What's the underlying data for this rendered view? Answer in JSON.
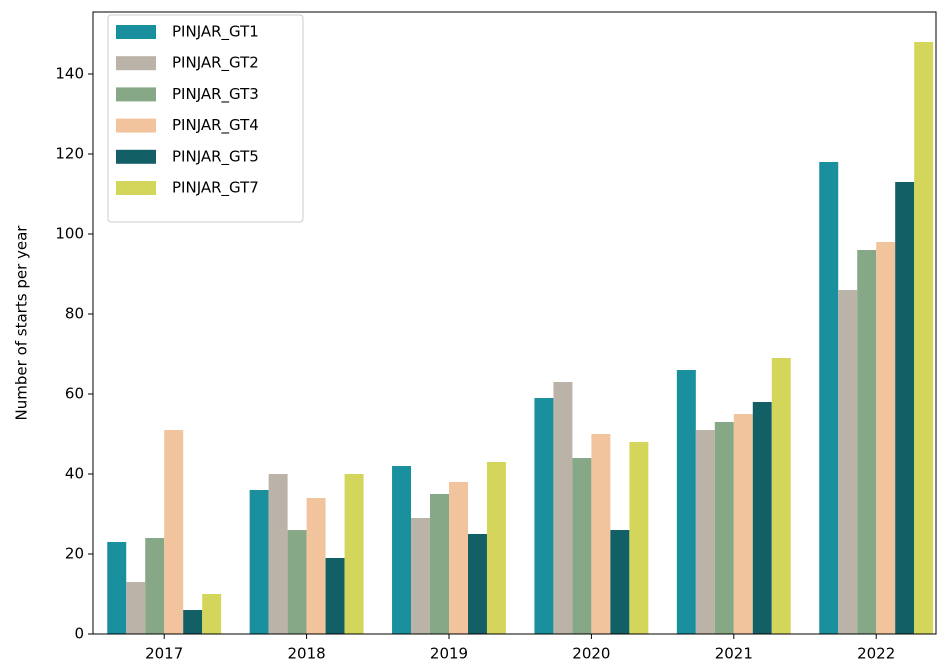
{
  "chart_data": {
    "type": "bar",
    "ylabel": "Number of starts per year",
    "categories": [
      "2017",
      "2018",
      "2019",
      "2020",
      "2021",
      "2022"
    ],
    "series": [
      {
        "name": "PINJAR_GT1",
        "color": "#1a8f9e",
        "values": [
          23,
          36,
          42,
          59,
          66,
          118
        ]
      },
      {
        "name": "PINJAR_GT2",
        "color": "#bcb3a8",
        "values": [
          13,
          40,
          29,
          63,
          51,
          86
        ]
      },
      {
        "name": "PINJAR_GT3",
        "color": "#86a886",
        "values": [
          24,
          26,
          35,
          44,
          53,
          96
        ]
      },
      {
        "name": "PINJAR_GT4",
        "color": "#f2c49d",
        "values": [
          51,
          34,
          38,
          50,
          55,
          98
        ]
      },
      {
        "name": "PINJAR_GT5",
        "color": "#135f66",
        "values": [
          6,
          19,
          25,
          26,
          58,
          113
        ]
      },
      {
        "name": "PINJAR_GT7",
        "color": "#d4d65c",
        "values": [
          10,
          40,
          43,
          48,
          69,
          148
        ]
      }
    ],
    "ylim": [
      0,
      155.5
    ],
    "yticks": [
      0,
      20,
      40,
      60,
      80,
      100,
      120,
      140
    ],
    "legend": "upper-left"
  }
}
